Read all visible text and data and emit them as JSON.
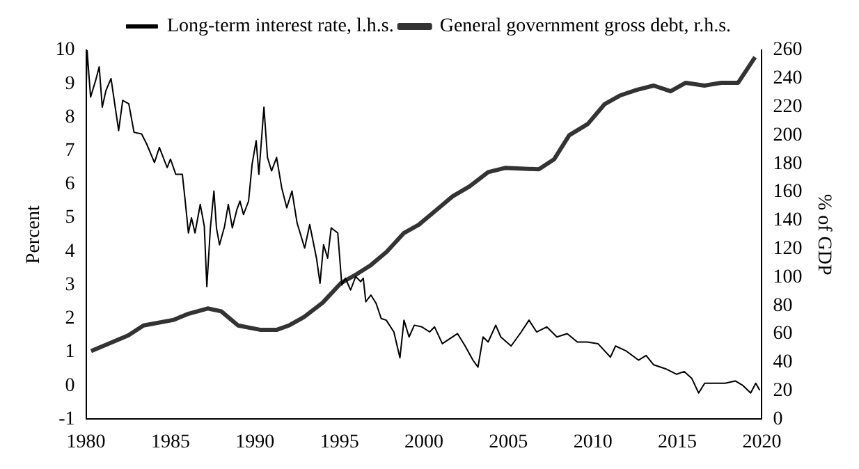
{
  "chart_data": {
    "type": "line",
    "ylabel": "Percent",
    "y2label": "% of GDP",
    "xlim": [
      1980,
      2020
    ],
    "xticks": [
      1980,
      1985,
      1990,
      1995,
      2000,
      2005,
      2010,
      2015,
      2020
    ],
    "ylim": [
      -1,
      10
    ],
    "yticks": [
      -1,
      0,
      1,
      2,
      3,
      4,
      5,
      6,
      7,
      8,
      9,
      10
    ],
    "y2lim": [
      0,
      260
    ],
    "y2ticks": [
      0,
      20,
      40,
      60,
      80,
      100,
      120,
      140,
      160,
      180,
      200,
      220,
      240,
      260
    ],
    "grid": false,
    "legend": "top",
    "marker": "none",
    "series": [
      {
        "name": "Long-term interest rate, l.h.s.",
        "color": "#000000",
        "x": [
          1980.0,
          1980.06,
          1980.27,
          1980.57,
          1980.78,
          1980.96,
          1981.18,
          1981.48,
          1981.93,
          1982.17,
          1982.53,
          1982.84,
          1983.29,
          1983.59,
          1984.05,
          1984.34,
          1984.8,
          1985.0,
          1985.31,
          1985.7,
          1985.85,
          1986.06,
          1986.24,
          1986.45,
          1986.76,
          1987.0,
          1987.15,
          1987.36,
          1987.57,
          1987.72,
          1987.9,
          1988.2,
          1988.42,
          1988.66,
          1988.93,
          1989.11,
          1989.32,
          1989.62,
          1989.83,
          1990.07,
          1990.23,
          1990.53,
          1990.74,
          1990.98,
          1991.28,
          1991.58,
          1991.88,
          1992.19,
          1992.49,
          1992.94,
          1993.24,
          1993.64,
          1993.85,
          1994.06,
          1994.3,
          1994.51,
          1994.9,
          1995.14,
          1995.35,
          1995.66,
          1995.96,
          1996.26,
          1996.41,
          1996.56,
          1996.86,
          1997.17,
          1997.47,
          1997.77,
          1998.22,
          1998.58,
          1998.82,
          1999.12,
          1999.43,
          1999.88,
          2000.34,
          2000.63,
          2001.09,
          2001.54,
          2001.99,
          2002.44,
          2002.9,
          2003.2,
          2003.5,
          2003.8,
          2004.25,
          2004.55,
          2005.16,
          2005.76,
          2006.22,
          2006.67,
          2007.27,
          2007.87,
          2008.48,
          2009.08,
          2009.68,
          2010.3,
          2011.04,
          2011.34,
          2011.95,
          2012.7,
          2013.15,
          2013.6,
          2014.36,
          2014.96,
          2015.41,
          2015.86,
          2016.26,
          2016.62,
          2017.22,
          2017.83,
          2018.43,
          2018.89,
          2019.34,
          2019.64,
          2019.88
        ],
        "values": [
          8.6,
          10,
          8.6,
          9.1,
          9.5,
          8.3,
          8.8,
          9.15,
          7.6,
          8.5,
          8.4,
          7.55,
          7.5,
          7.2,
          6.65,
          7.1,
          6.5,
          6.75,
          6.3,
          6.3,
          5.6,
          4.55,
          5.0,
          4.55,
          5.4,
          4.75,
          2.95,
          4.7,
          5.8,
          4.7,
          4.2,
          4.75,
          5.4,
          4.7,
          5.25,
          5.5,
          5.1,
          5.5,
          6.6,
          7.3,
          6.3,
          8.3,
          6.8,
          6.4,
          6.8,
          5.9,
          5.3,
          5.8,
          4.85,
          4.1,
          4.8,
          3.8,
          3.05,
          4.2,
          3.8,
          4.7,
          4.55,
          3.0,
          3.2,
          2.85,
          3.25,
          3.1,
          3.2,
          2.5,
          2.7,
          2.45,
          2.0,
          1.95,
          1.6,
          0.83,
          1.95,
          1.45,
          1.8,
          1.75,
          1.6,
          1.75,
          1.25,
          1.4,
          1.55,
          1.18,
          0.76,
          0.55,
          1.45,
          1.3,
          1.8,
          1.45,
          1.18,
          1.6,
          1.95,
          1.6,
          1.75,
          1.45,
          1.55,
          1.3,
          1.3,
          1.25,
          0.85,
          1.18,
          1.04,
          0.76,
          0.9,
          0.62,
          0.49,
          0.34,
          0.42,
          0.21,
          -0.22,
          0.07,
          0.07,
          0.07,
          0.14,
          0.0,
          -0.22,
          0.07,
          -0.14
        ]
      },
      {
        "name": "General government gross debt, r.h.s.",
        "color": "#333333",
        "axis": "y2",
        "x": [
          1980.3,
          1981.5,
          1982.5,
          1983.4,
          1985.2,
          1986.0,
          1987.2,
          1988.0,
          1989.0,
          1990.3,
          1991.3,
          1992.0,
          1992.9,
          1994.0,
          1995.1,
          1996.0,
          1996.8,
          1997.8,
          1998.8,
          1999.7,
          2000.7,
          2001.7,
          2002.7,
          2003.8,
          2004.8,
          2006.8,
          2007.7,
          2008.6,
          2009.7,
          2010.7,
          2011.6,
          2012.6,
          2013.6,
          2014.6,
          2015.5,
          2016.6,
          2017.6,
          2018.6,
          2019.6
        ],
        "values": [
          48,
          54,
          59,
          66,
          70,
          74,
          78,
          76,
          66,
          63,
          63,
          66,
          72,
          82,
          96,
          102,
          108,
          118,
          131,
          137,
          147,
          157,
          164,
          174,
          177,
          176,
          183,
          200,
          208,
          222,
          228,
          232,
          235,
          231,
          237,
          235,
          237,
          237,
          255
        ]
      }
    ]
  }
}
